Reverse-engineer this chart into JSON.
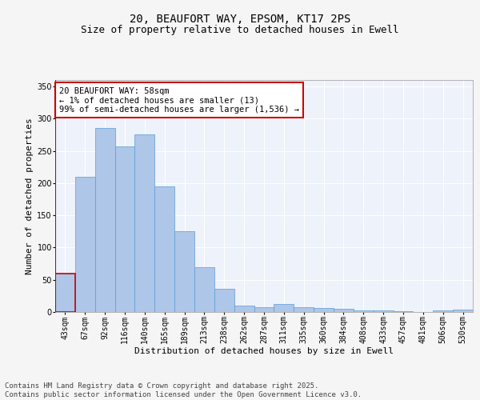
{
  "title_line1": "20, BEAUFORT WAY, EPSOM, KT17 2PS",
  "title_line2": "Size of property relative to detached houses in Ewell",
  "xlabel": "Distribution of detached houses by size in Ewell",
  "ylabel": "Number of detached properties",
  "categories": [
    "43sqm",
    "67sqm",
    "92sqm",
    "116sqm",
    "140sqm",
    "165sqm",
    "189sqm",
    "213sqm",
    "238sqm",
    "262sqm",
    "287sqm",
    "311sqm",
    "335sqm",
    "360sqm",
    "384sqm",
    "408sqm",
    "433sqm",
    "457sqm",
    "481sqm",
    "506sqm",
    "530sqm"
  ],
  "values": [
    59,
    210,
    285,
    257,
    275,
    195,
    126,
    69,
    36,
    10,
    7,
    13,
    8,
    6,
    5,
    2,
    2,
    1,
    0,
    3,
    4
  ],
  "bar_color": "#aec6e8",
  "bar_edge_color": "#5b9bd5",
  "highlight_color": "#cc0000",
  "annotation_text": "20 BEAUFORT WAY: 58sqm\n← 1% of detached houses are smaller (13)\n99% of semi-detached houses are larger (1,536) →",
  "annotation_box_color": "#ffffff",
  "annotation_box_edge": "#cc0000",
  "ylim": [
    0,
    360
  ],
  "yticks": [
    0,
    50,
    100,
    150,
    200,
    250,
    300,
    350
  ],
  "background_color": "#eef2fa",
  "grid_color": "#ffffff",
  "fig_background": "#f5f5f5",
  "footer_text": "Contains HM Land Registry data © Crown copyright and database right 2025.\nContains public sector information licensed under the Open Government Licence v3.0.",
  "title_fontsize": 10,
  "subtitle_fontsize": 9,
  "axis_label_fontsize": 8,
  "tick_fontsize": 7,
  "annotation_fontsize": 7.5,
  "footer_fontsize": 6.5
}
